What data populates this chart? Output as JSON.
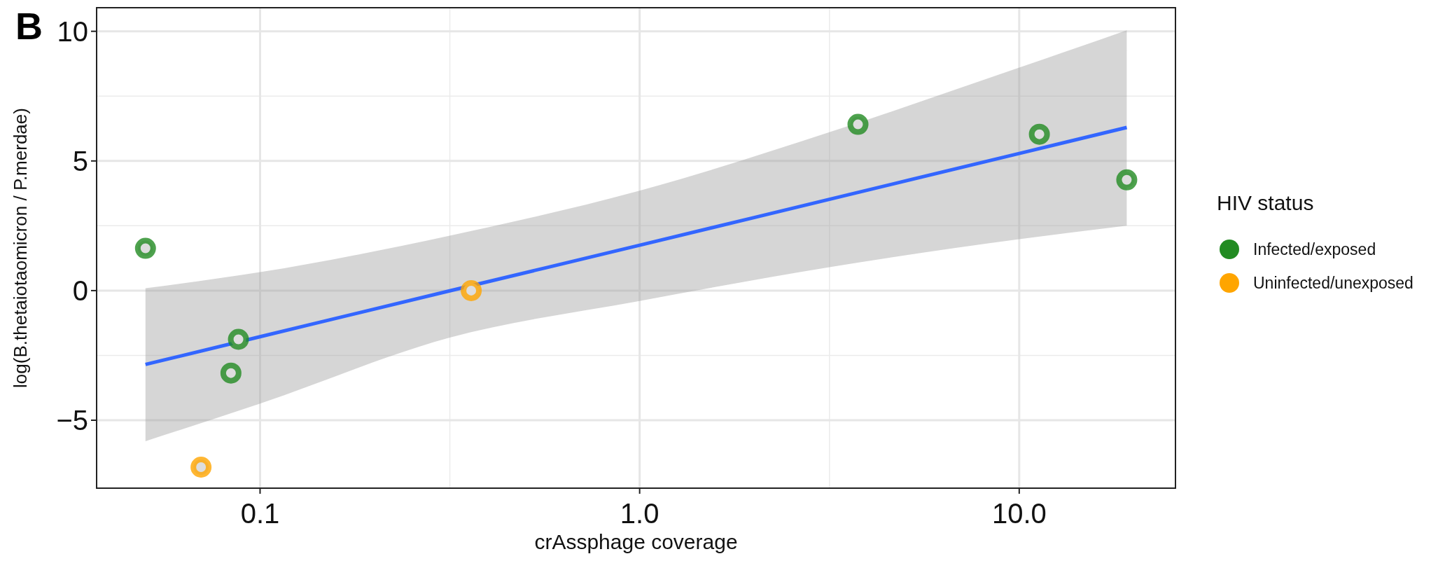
{
  "chart_data": {
    "type": "scatter",
    "xlabel": "crAssphage coverage",
    "ylabel": "log(B.thetaiotaomicron / P.merdae)",
    "legend_title": "HIV status",
    "annotations": [
      "B"
    ],
    "log": "x",
    "grid": true,
    "legend": "right",
    "marker": "circle",
    "xlim": [
      0.0371,
      25.8
    ],
    "ylim": [
      -7.62,
      10.91
    ],
    "xticks": [
      {
        "value": 0.1,
        "label": "0.1"
      },
      {
        "value": 1,
        "label": "1.0"
      },
      {
        "value": 10,
        "label": "10.0"
      }
    ],
    "yticks": [
      -5,
      0,
      5,
      10
    ],
    "series": [
      {
        "name": "Infected/exposed",
        "color": "#228b22",
        "x": [
          0.0499,
          0.0838,
          0.0877,
          3.76,
          11.3,
          19.2
        ],
        "values": [
          1.63,
          -3.18,
          -1.88,
          6.41,
          6.03,
          4.27
        ]
      },
      {
        "name": "Uninfected/unexposed",
        "color": "#ffa500",
        "x": [
          0.0699,
          0.36
        ],
        "values": [
          -6.81,
          0.0
        ]
      },
      {
        "color": "#3366ff",
        "type": "line",
        "marker": "none",
        "line_style": "solid",
        "x": [
          0.0499,
          0.1,
          0.316,
          1,
          3.16,
          10,
          19.2
        ],
        "values": [
          -2.85,
          -1.78,
          -0.01,
          1.75,
          3.52,
          5.29,
          6.29
        ],
        "lower": [
          -5.81,
          -4.36,
          -1.81,
          -0.4,
          0.9,
          1.98,
          2.5
        ],
        "upper": [
          0.09,
          0.71,
          2.12,
          3.85,
          6.11,
          8.6,
          10.04
        ]
      }
    ]
  }
}
